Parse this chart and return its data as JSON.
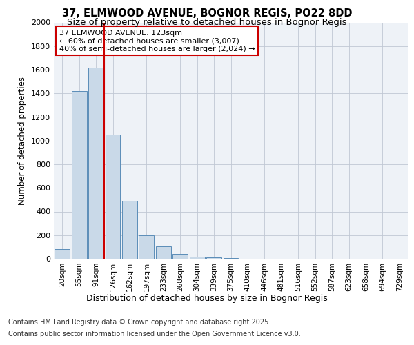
{
  "title_line1": "37, ELMWOOD AVENUE, BOGNOR REGIS, PO22 8DD",
  "title_line2": "Size of property relative to detached houses in Bognor Regis",
  "xlabel": "Distribution of detached houses by size in Bognor Regis",
  "ylabel": "Number of detached properties",
  "categories": [
    "20sqm",
    "55sqm",
    "91sqm",
    "126sqm",
    "162sqm",
    "197sqm",
    "233sqm",
    "268sqm",
    "304sqm",
    "339sqm",
    "375sqm",
    "410sqm",
    "446sqm",
    "481sqm",
    "516sqm",
    "552sqm",
    "587sqm",
    "623sqm",
    "658sqm",
    "694sqm",
    "729sqm"
  ],
  "values": [
    80,
    1420,
    1620,
    1050,
    490,
    200,
    105,
    40,
    20,
    10,
    4,
    2,
    0,
    0,
    0,
    0,
    0,
    0,
    0,
    0,
    0
  ],
  "bar_color": "#c9d9e8",
  "bar_edgecolor": "#5b8db8",
  "vline_color": "#cc0000",
  "annotation_text": "37 ELMWOOD AVENUE: 123sqm\n← 60% of detached houses are smaller (3,007)\n40% of semi-detached houses are larger (2,024) →",
  "annotation_box_edgecolor": "#cc0000",
  "annotation_box_facecolor": "#ffffff",
  "ylim": [
    0,
    2000
  ],
  "yticks": [
    0,
    200,
    400,
    600,
    800,
    1000,
    1200,
    1400,
    1600,
    1800,
    2000
  ],
  "background_color": "#eef2f7",
  "footer_line1": "Contains HM Land Registry data © Crown copyright and database right 2025.",
  "footer_line2": "Contains public sector information licensed under the Open Government Licence v3.0.",
  "title_fontsize": 10.5,
  "subtitle_fontsize": 9.5,
  "annotation_fontsize": 8,
  "xlabel_fontsize": 9,
  "ylabel_fontsize": 8.5,
  "footer_fontsize": 7,
  "tick_fontsize": 7.5,
  "ytick_fontsize": 8
}
